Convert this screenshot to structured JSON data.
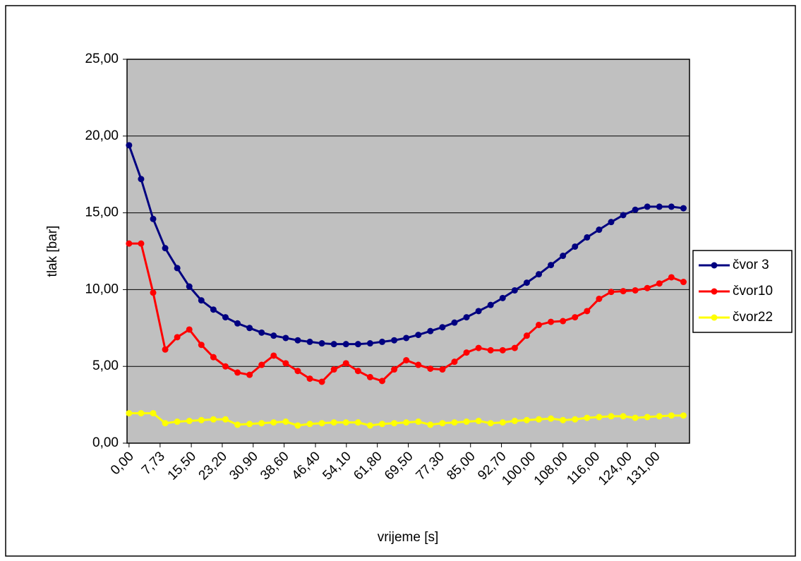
{
  "chart_data": {
    "type": "line",
    "x_label": "vrijeme [s]",
    "y_label": "tlak [bar]",
    "x": [
      0,
      3,
      6,
      9,
      12,
      15,
      18,
      21,
      24,
      27,
      30,
      33,
      36,
      39,
      42,
      45,
      48,
      51,
      54,
      57,
      60,
      63,
      66,
      69,
      72,
      75,
      78,
      81,
      84,
      87,
      90,
      93,
      96,
      99,
      102,
      105,
      108,
      111,
      114,
      117,
      120,
      123,
      126,
      129,
      132,
      135,
      138
    ],
    "series": [
      {
        "name": "čvor 3",
        "color": "#000080",
        "values": [
          19.4,
          17.2,
          14.6,
          12.7,
          11.4,
          10.2,
          9.3,
          8.7,
          8.2,
          7.8,
          7.5,
          7.2,
          7.0,
          6.85,
          6.7,
          6.6,
          6.5,
          6.45,
          6.45,
          6.45,
          6.5,
          6.6,
          6.7,
          6.85,
          7.05,
          7.3,
          7.55,
          7.85,
          8.2,
          8.6,
          9.0,
          9.45,
          9.95,
          10.45,
          11.0,
          11.6,
          12.2,
          12.8,
          13.4,
          13.9,
          14.4,
          14.85,
          15.2,
          15.4,
          15.4,
          15.4,
          15.3
        ]
      },
      {
        "name": "čvor10",
        "color": "#ff0000",
        "values": [
          13,
          13,
          9.8,
          6.1,
          6.9,
          7.4,
          6.4,
          5.6,
          5.0,
          4.6,
          4.45,
          5.1,
          5.7,
          5.2,
          4.7,
          4.2,
          4.0,
          4.8,
          5.2,
          4.7,
          4.3,
          4.05,
          4.8,
          5.4,
          5.1,
          4.85,
          4.8,
          5.3,
          5.9,
          6.2,
          6.05,
          6.05,
          6.2,
          7.0,
          7.7,
          7.9,
          7.95,
          8.2,
          8.6,
          9.4,
          9.85,
          9.9,
          9.95,
          10.1,
          10.4,
          10.8,
          10.5
        ]
      },
      {
        "name": "čvor22",
        "color": "#ffff00",
        "values": [
          1.95,
          1.95,
          1.95,
          1.3,
          1.4,
          1.45,
          1.5,
          1.55,
          1.55,
          1.2,
          1.25,
          1.3,
          1.35,
          1.4,
          1.15,
          1.25,
          1.3,
          1.35,
          1.35,
          1.35,
          1.15,
          1.25,
          1.3,
          1.35,
          1.4,
          1.2,
          1.3,
          1.35,
          1.4,
          1.45,
          1.3,
          1.35,
          1.45,
          1.5,
          1.55,
          1.6,
          1.5,
          1.55,
          1.65,
          1.7,
          1.75,
          1.75,
          1.65,
          1.7,
          1.75,
          1.8,
          1.8
        ]
      }
    ],
    "xlim": [
      -0.5,
      139.5
    ],
    "xticks": [
      {
        "value": 0,
        "label": "0,00"
      },
      {
        "value": 7.73,
        "label": "7,73"
      },
      {
        "value": 15.5,
        "label": "15,50"
      },
      {
        "value": 23.2,
        "label": "23,20"
      },
      {
        "value": 30.9,
        "label": "30,90"
      },
      {
        "value": 38.6,
        "label": "38,60"
      },
      {
        "value": 46.4,
        "label": "46,40"
      },
      {
        "value": 54.1,
        "label": "54,10"
      },
      {
        "value": 61.8,
        "label": "61,80"
      },
      {
        "value": 69.5,
        "label": "69,50"
      },
      {
        "value": 77.3,
        "label": "77,30"
      },
      {
        "value": 85,
        "label": "85,00"
      },
      {
        "value": 92.7,
        "label": "92,70"
      },
      {
        "value": 100,
        "label": "100,00"
      },
      {
        "value": 108,
        "label": "108,00"
      },
      {
        "value": 116,
        "label": "116,00"
      },
      {
        "value": 124,
        "label": "124,00"
      },
      {
        "value": 131,
        "label": "131,00"
      }
    ],
    "ylim": [
      0,
      25
    ],
    "yticks": [
      {
        "value": 0,
        "label": "0,00"
      },
      {
        "value": 5,
        "label": "5,00"
      },
      {
        "value": 10,
        "label": "10,00"
      },
      {
        "value": 15,
        "label": "15,00"
      },
      {
        "value": 20,
        "label": "20,00"
      },
      {
        "value": 25,
        "label": "25,00"
      }
    ],
    "grid": true,
    "legend": "right",
    "plot_background": "#c0c0c0"
  }
}
